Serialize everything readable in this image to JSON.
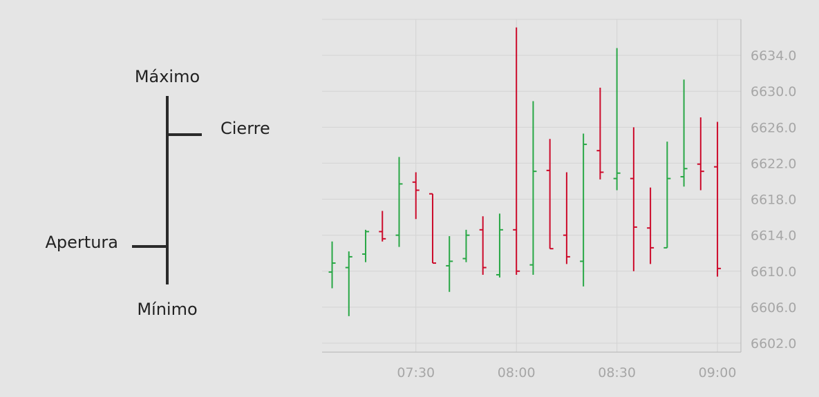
{
  "legend": {
    "high_label": "Máximo",
    "close_label": "Cierre",
    "open_label": "Apertura",
    "low_label": "Mínimo"
  },
  "colors": {
    "up": "#28a745",
    "down": "#cc0a2a",
    "grid": "#d3d3d3",
    "axis": "#bdbdbd",
    "background": "#e5e5e5",
    "legend_ink": "#2a2a2a"
  },
  "chart_data": {
    "type": "ohlc",
    "title": "",
    "xlabel": "",
    "ylabel": "",
    "ylim": [
      6601.0,
      6638.0
    ],
    "xlim": [
      "07:02",
      "09:07"
    ],
    "y_ticks": [
      "6602.0",
      "6606.0",
      "6610.0",
      "6614.0",
      "6618.0",
      "6622.0",
      "6626.0",
      "6630.0",
      "6634.0"
    ],
    "x_ticks": [
      "07:30",
      "08:00",
      "08:30",
      "09:00"
    ],
    "grid": true,
    "y_axis_position": "right",
    "bars": [
      {
        "t": "07:05",
        "open": 6609.9,
        "high": 6613.3,
        "low": 6608.1,
        "close": 6610.9
      },
      {
        "t": "07:10",
        "open": 6610.4,
        "high": 6612.2,
        "low": 6605.0,
        "close": 6611.6
      },
      {
        "t": "07:15",
        "open": 6611.9,
        "high": 6614.6,
        "low": 6611.0,
        "close": 6614.4
      },
      {
        "t": "07:20",
        "open": 6614.4,
        "high": 6616.7,
        "low": 6613.3,
        "close": 6613.6
      },
      {
        "t": "07:25",
        "open": 6614.0,
        "high": 6622.7,
        "low": 6612.7,
        "close": 6619.7
      },
      {
        "t": "07:30",
        "open": 6619.9,
        "high": 6621.0,
        "low": 6615.8,
        "close": 6619.0
      },
      {
        "t": "07:35",
        "open": 6618.6,
        "high": 6618.6,
        "low": 6610.9,
        "close": 6610.9
      },
      {
        "t": "07:40",
        "open": 6610.6,
        "high": 6613.9,
        "low": 6607.7,
        "close": 6611.1
      },
      {
        "t": "07:45",
        "open": 6611.4,
        "high": 6614.6,
        "low": 6611.0,
        "close": 6614.0
      },
      {
        "t": "07:50",
        "open": 6614.6,
        "high": 6616.1,
        "low": 6609.6,
        "close": 6610.4
      },
      {
        "t": "07:55",
        "open": 6609.6,
        "high": 6616.4,
        "low": 6609.3,
        "close": 6614.6
      },
      {
        "t": "08:00",
        "open": 6614.6,
        "high": 6637.1,
        "low": 6609.6,
        "close": 6610.0
      },
      {
        "t": "08:05",
        "open": 6610.7,
        "high": 6628.9,
        "low": 6609.6,
        "close": 6621.1
      },
      {
        "t": "08:10",
        "open": 6621.2,
        "high": 6624.7,
        "low": 6612.5,
        "close": 6612.5
      },
      {
        "t": "08:15",
        "open": 6614.0,
        "high": 6621.0,
        "low": 6610.8,
        "close": 6611.6
      },
      {
        "t": "08:20",
        "open": 6611.1,
        "high": 6625.3,
        "low": 6608.3,
        "close": 6624.1
      },
      {
        "t": "08:25",
        "open": 6623.4,
        "high": 6630.4,
        "low": 6620.2,
        "close": 6621.0
      },
      {
        "t": "08:30",
        "open": 6620.3,
        "high": 6634.8,
        "low": 6619.0,
        "close": 6620.9
      },
      {
        "t": "08:35",
        "open": 6620.3,
        "high": 6626.0,
        "low": 6610.0,
        "close": 6614.9
      },
      {
        "t": "08:40",
        "open": 6614.8,
        "high": 6619.3,
        "low": 6610.8,
        "close": 6612.6
      },
      {
        "t": "08:45",
        "open": 6612.6,
        "high": 6624.4,
        "low": 6612.6,
        "close": 6620.3
      },
      {
        "t": "08:50",
        "open": 6620.5,
        "high": 6631.3,
        "low": 6619.4,
        "close": 6621.4
      },
      {
        "t": "08:55",
        "open": 6621.9,
        "high": 6627.1,
        "low": 6619.0,
        "close": 6621.1
      },
      {
        "t": "09:00",
        "open": 6621.6,
        "high": 6626.6,
        "low": 6609.4,
        "close": 6610.3
      }
    ]
  }
}
